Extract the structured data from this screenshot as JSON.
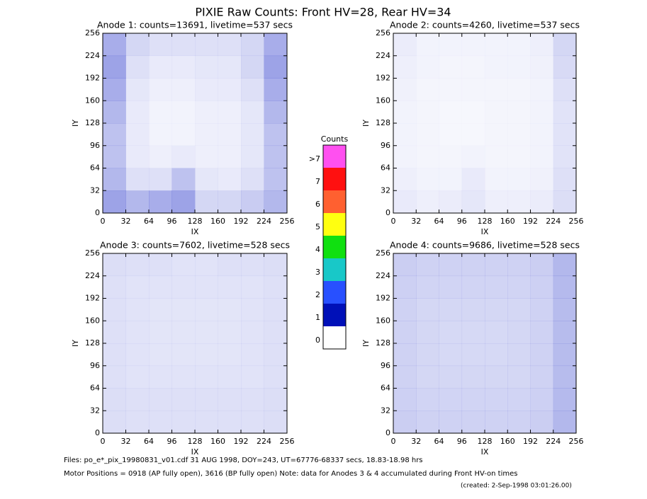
{
  "title": "PIXIE Raw Counts:  Front HV=28, Rear HV=34",
  "chart_data": [
    {
      "type": "heatmap",
      "title": "Anode 1: counts=13691, livetime=537 secs",
      "x_label": "IX",
      "y_label": "IY",
      "xlim": [
        0,
        256
      ],
      "ylim": [
        0,
        256
      ],
      "xticks": [
        0,
        32,
        64,
        96,
        128,
        160,
        192,
        224,
        256
      ],
      "yticks": [
        0,
        32,
        64,
        96,
        128,
        160,
        192,
        224,
        256
      ],
      "color": "#0010c0",
      "z": [
        [
          40,
          20,
          15,
          15,
          15,
          15,
          20,
          40
        ],
        [
          45,
          15,
          10,
          10,
          12,
          12,
          20,
          45
        ],
        [
          40,
          12,
          8,
          8,
          10,
          10,
          15,
          40
        ],
        [
          35,
          10,
          6,
          6,
          8,
          8,
          12,
          35
        ],
        [
          30,
          10,
          6,
          6,
          8,
          8,
          12,
          30
        ],
        [
          30,
          10,
          8,
          10,
          8,
          8,
          12,
          30
        ],
        [
          35,
          15,
          15,
          30,
          12,
          10,
          15,
          30
        ],
        [
          45,
          35,
          40,
          45,
          20,
          20,
          25,
          35
        ]
      ]
    },
    {
      "type": "heatmap",
      "title": "Anode 2: counts=4260, livetime=537 secs",
      "x_label": "IX",
      "y_label": "IY",
      "xlim": [
        0,
        256
      ],
      "ylim": [
        0,
        256
      ],
      "xticks": [
        0,
        32,
        64,
        96,
        128,
        160,
        192,
        224,
        256
      ],
      "yticks": [
        0,
        32,
        64,
        96,
        128,
        160,
        192,
        224,
        256
      ],
      "color": "#0010c0",
      "z": [
        [
          9,
          6,
          6,
          6,
          6,
          6,
          8,
          20
        ],
        [
          8,
          6,
          5,
          5,
          6,
          6,
          7,
          18
        ],
        [
          7,
          5,
          5,
          5,
          5,
          5,
          6,
          15
        ],
        [
          6,
          5,
          4,
          4,
          5,
          5,
          6,
          14
        ],
        [
          6,
          5,
          4,
          4,
          5,
          5,
          6,
          14
        ],
        [
          6,
          5,
          5,
          6,
          5,
          5,
          6,
          14
        ],
        [
          8,
          6,
          6,
          10,
          6,
          6,
          7,
          15
        ],
        [
          10,
          8,
          9,
          12,
          8,
          8,
          9,
          16
        ]
      ]
    },
    {
      "type": "heatmap",
      "title": "Anode 3: counts=7602, livetime=528 secs",
      "x_label": "IX",
      "y_label": "IY",
      "xlim": [
        0,
        256
      ],
      "ylim": [
        0,
        256
      ],
      "xticks": [
        0,
        32,
        64,
        96,
        128,
        160,
        192,
        224,
        256
      ],
      "yticks": [
        0,
        32,
        64,
        96,
        128,
        160,
        192,
        224,
        256
      ],
      "color": "#0010c0",
      "z": [
        [
          16,
          15,
          15,
          14,
          14,
          15,
          15,
          16
        ],
        [
          15,
          14,
          14,
          14,
          14,
          14,
          14,
          15
        ],
        [
          15,
          14,
          13,
          13,
          13,
          13,
          14,
          15
        ],
        [
          15,
          14,
          13,
          13,
          13,
          13,
          14,
          15
        ],
        [
          15,
          14,
          13,
          13,
          13,
          13,
          14,
          15
        ],
        [
          15,
          14,
          14,
          14,
          14,
          14,
          14,
          15
        ],
        [
          16,
          15,
          15,
          15,
          15,
          15,
          15,
          16
        ],
        [
          16,
          15,
          15,
          15,
          15,
          15,
          15,
          16
        ]
      ]
    },
    {
      "type": "heatmap",
      "title": "Anode 4: counts=9686, livetime=528 secs",
      "x_label": "IX",
      "y_label": "IY",
      "xlim": [
        0,
        256
      ],
      "ylim": [
        0,
        256
      ],
      "xticks": [
        0,
        32,
        64,
        96,
        128,
        160,
        192,
        224,
        256
      ],
      "yticks": [
        0,
        32,
        64,
        96,
        128,
        160,
        192,
        224,
        256
      ],
      "color": "#0010c0",
      "z": [
        [
          24,
          22,
          22,
          22,
          22,
          22,
          24,
          35
        ],
        [
          23,
          21,
          21,
          21,
          21,
          21,
          23,
          34
        ],
        [
          22,
          20,
          20,
          20,
          20,
          20,
          22,
          33
        ],
        [
          22,
          20,
          19,
          19,
          19,
          20,
          22,
          33
        ],
        [
          22,
          20,
          19,
          19,
          19,
          20,
          22,
          33
        ],
        [
          22,
          20,
          20,
          20,
          20,
          20,
          22,
          33
        ],
        [
          23,
          21,
          21,
          21,
          21,
          21,
          23,
          34
        ],
        [
          24,
          22,
          22,
          22,
          22,
          22,
          24,
          35
        ]
      ]
    }
  ],
  "colorbar": {
    "title": "Counts",
    "labels": [
      "0",
      "1",
      "2",
      "3",
      "4",
      "5",
      "6",
      "7",
      ">7"
    ],
    "colors": [
      "#ffffff",
      "#0010b8",
      "#2850ff",
      "#18c8c8",
      "#10e010",
      "#ffff10",
      "#ff6030",
      "#ff1010",
      "#ff50f0"
    ]
  },
  "footer": {
    "files": "Files: po_e*_pix_19980831_v01.cdf    31 AUG 1998, DOY=243, UT=67776-68337 secs, 18.83-18.98 hrs",
    "motor": "Motor Positions = 0918 (AP fully open), 3616 (BP fully open)    Note: data for Anodes 3 & 4 accumulated during Front HV-on times",
    "created": "(created:  2-Sep-1998 03:01:26.00)"
  }
}
